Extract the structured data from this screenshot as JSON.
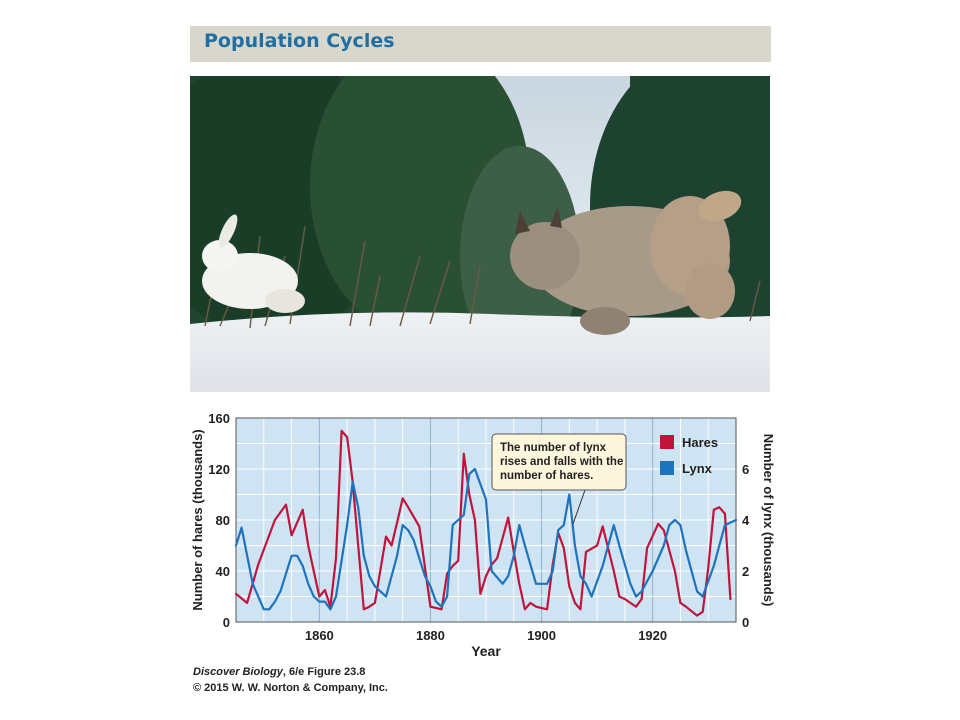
{
  "title": "Population Cycles",
  "photo": {
    "icon": "hare-and-lynx-photo"
  },
  "caption": {
    "book": "Discover Biology",
    "edition_figure": ", 6/e  Figure 23.8",
    "copyright": "© 2015 W. W. Norton & Company, Inc."
  },
  "chart_data": {
    "type": "line",
    "xlabel": "Year",
    "ylabel_left": "Number of hares (thousands)",
    "ylabel_right": "Number of lynx (thousands)",
    "xlim": [
      1845,
      1935
    ],
    "ylim_left": [
      0,
      160
    ],
    "ylim_right": [
      0,
      8
    ],
    "x_ticks": [
      "1860",
      "1880",
      "1900",
      "1920"
    ],
    "y_ticks_left": [
      "0",
      "40",
      "80",
      "120",
      "160"
    ],
    "y_ticks_right": [
      "0",
      "2",
      "4",
      "6"
    ],
    "grid": true,
    "legend_position": "top-right",
    "annotation": "The number of lynx rises and falls with the number of hares.",
    "series": [
      {
        "name": "Hares",
        "axis": "left",
        "color": "#c0143c",
        "x": [
          1845,
          1847,
          1849,
          1852,
          1854,
          1855,
          1857,
          1858,
          1860,
          1861,
          1862,
          1863,
          1864,
          1865,
          1866,
          1867,
          1868,
          1869,
          1870,
          1872,
          1873,
          1874,
          1875,
          1876,
          1878,
          1880,
          1882,
          1883,
          1884,
          1885,
          1886,
          1887,
          1888,
          1889,
          1890,
          1891,
          1892,
          1894,
          1895,
          1896,
          1897,
          1898,
          1899,
          1901,
          1902,
          1903,
          1904,
          1905,
          1906,
          1907,
          1908,
          1910,
          1911,
          1913,
          1914,
          1915,
          1917,
          1918,
          1919,
          1921,
          1922,
          1924,
          1925,
          1926,
          1928,
          1929,
          1930,
          1931,
          1932,
          1933,
          1934
        ],
        "y": [
          22,
          15,
          45,
          80,
          92,
          68,
          88,
          60,
          20,
          25,
          12,
          50,
          150,
          145,
          110,
          60,
          10,
          12,
          15,
          67,
          60,
          78,
          97,
          90,
          75,
          12,
          10,
          38,
          44,
          48,
          132,
          100,
          80,
          22,
          36,
          45,
          50,
          82,
          55,
          30,
          10,
          15,
          12,
          10,
          45,
          70,
          58,
          28,
          15,
          10,
          55,
          60,
          75,
          40,
          20,
          18,
          12,
          18,
          58,
          77,
          72,
          40,
          15,
          12,
          5,
          8,
          42,
          88,
          90,
          85,
          18
        ]
      },
      {
        "name": "Lynx",
        "axis": "right",
        "color": "#1e73be",
        "x": [
          1845,
          1846,
          1848,
          1850,
          1851,
          1852,
          1853,
          1855,
          1856,
          1857,
          1858,
          1859,
          1860,
          1861,
          1862,
          1863,
          1865,
          1866,
          1867,
          1868,
          1869,
          1870,
          1872,
          1873,
          1874,
          1875,
          1876,
          1877,
          1878,
          1879,
          1880,
          1881,
          1882,
          1883,
          1884,
          1885,
          1886,
          1887,
          1888,
          1890,
          1891,
          1893,
          1894,
          1895,
          1896,
          1897,
          1899,
          1901,
          1902,
          1903,
          1904,
          1905,
          1906,
          1907,
          1908,
          1909,
          1911,
          1912,
          1913,
          1914,
          1916,
          1917,
          1918,
          1920,
          1922,
          1923,
          1924,
          1925,
          1926,
          1928,
          1929,
          1931,
          1933,
          1935
        ],
        "y": [
          3,
          3.7,
          1.5,
          0.5,
          0.5,
          0.8,
          1.2,
          2.6,
          2.6,
          2.2,
          1.5,
          1.0,
          0.8,
          0.8,
          0.5,
          1.0,
          3.8,
          5.5,
          4.5,
          2.6,
          1.8,
          1.4,
          1.0,
          1.8,
          2.6,
          3.8,
          3.6,
          3.2,
          2.5,
          1.8,
          1.4,
          0.8,
          0.6,
          1.0,
          3.8,
          4.0,
          4.2,
          5.8,
          6.0,
          4.8,
          2.0,
          1.5,
          1.8,
          2.6,
          3.8,
          3.0,
          1.5,
          1.5,
          2.0,
          3.6,
          3.8,
          5.0,
          3.0,
          1.8,
          1.5,
          1.0,
          2.2,
          3.0,
          3.8,
          3.0,
          1.5,
          1.0,
          1.2,
          2.0,
          3.0,
          3.8,
          4.0,
          3.8,
          2.8,
          1.2,
          1.0,
          2.2,
          3.8,
          4.0
        ]
      }
    ]
  }
}
